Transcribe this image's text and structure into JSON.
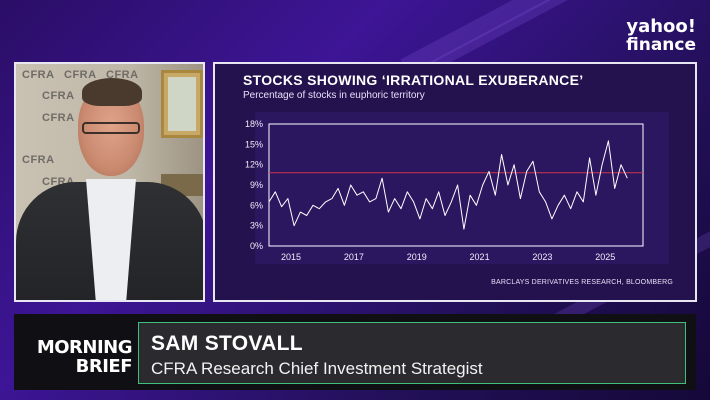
{
  "brand": {
    "line1": "yahoo!",
    "line2": "finance"
  },
  "camera": {
    "wall_labels": [
      "CFRA",
      "CFRA",
      "CFRA",
      "CFRA",
      "CFRA",
      "CFRA",
      "CFRA"
    ]
  },
  "chart_data": {
    "type": "line",
    "title": "STOCKS SHOWING ‘IRRATIONAL EXUBERANCE’",
    "subtitle": "Percentage of stocks in euphoric territory",
    "source": "BARCLAYS DERIVATIVES RESEARCH, BLOOMBERG",
    "ylabels": [
      "18%",
      "15%",
      "12%",
      "9%",
      "6%",
      "3%",
      "0%"
    ],
    "xlabels": [
      "2015",
      "2017",
      "2019",
      "2021",
      "2023",
      "2025"
    ],
    "ylim": [
      0,
      18
    ],
    "xlim": [
      2014.3,
      2026.2
    ],
    "reference_line": 10.8,
    "series": [
      {
        "x": [
          2014.3,
          2014.5,
          2014.7,
          2014.9,
          2015.1,
          2015.3,
          2015.5,
          2015.7,
          2015.9,
          2016.1,
          2016.3,
          2016.5,
          2016.7,
          2016.9,
          2017.1,
          2017.3,
          2017.5,
          2017.7,
          2017.9,
          2018.1,
          2018.3,
          2018.5,
          2018.7,
          2018.9,
          2019.1,
          2019.3,
          2019.5,
          2019.7,
          2019.9,
          2020.1,
          2020.3,
          2020.5,
          2020.7,
          2020.9,
          2021.1,
          2021.3,
          2021.5,
          2021.7,
          2021.9,
          2022.1,
          2022.3,
          2022.5,
          2022.7,
          2022.9,
          2023.1,
          2023.3,
          2023.5,
          2023.7,
          2023.9,
          2024.1,
          2024.3,
          2024.5,
          2024.7,
          2024.9,
          2025.1,
          2025.3,
          2025.5,
          2025.7
        ],
        "values": [
          6.5,
          8,
          5.8,
          7,
          3,
          5,
          4.5,
          6,
          5.5,
          6.5,
          7,
          8.5,
          6,
          9,
          7.5,
          8,
          6.5,
          7,
          10,
          5,
          7,
          5.5,
          8,
          6.5,
          4,
          7,
          5.5,
          8,
          4.5,
          6.5,
          9,
          2.5,
          7.5,
          6,
          9,
          11,
          7.5,
          13.5,
          9,
          12,
          7,
          11,
          12.5,
          8,
          6.5,
          4,
          6,
          7.5,
          5.5,
          8,
          6.5,
          13,
          7.5,
          12,
          15.5,
          8.5,
          12,
          10
        ]
      }
    ]
  },
  "lower_third": {
    "show_line1": "MORNING",
    "show_line2": "BRIEF",
    "name": "SAM STOVALL",
    "title": "CFRA Research Chief Investment Strategist"
  }
}
